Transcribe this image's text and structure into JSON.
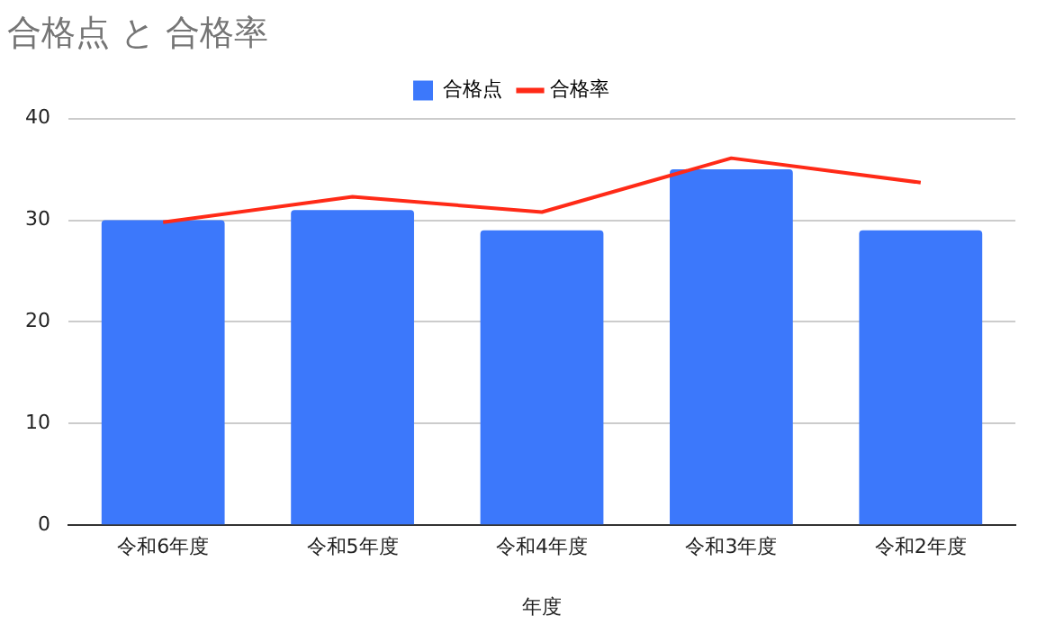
{
  "chart_data": {
    "type": "bar",
    "title": "合格点 と 合格率",
    "xlabel": "年度",
    "categories": [
      "令和6年度",
      "令和5年度",
      "令和4年度",
      "令和3年度",
      "令和2年度"
    ],
    "series": [
      {
        "name": "合格点",
        "color": "#3c78fb",
        "values": [
          30,
          31,
          29,
          35,
          29
        ]
      },
      {
        "name": "合格率",
        "type": "line",
        "color": "#ff2a17",
        "values": [
          29.8,
          32.3,
          30.8,
          36.1,
          33.7
        ]
      }
    ],
    "ylim": [
      0,
      40
    ],
    "yticks": [
      0,
      10,
      20,
      30,
      40
    ],
    "grid": "y",
    "legend": "top",
    "marker": "none"
  }
}
